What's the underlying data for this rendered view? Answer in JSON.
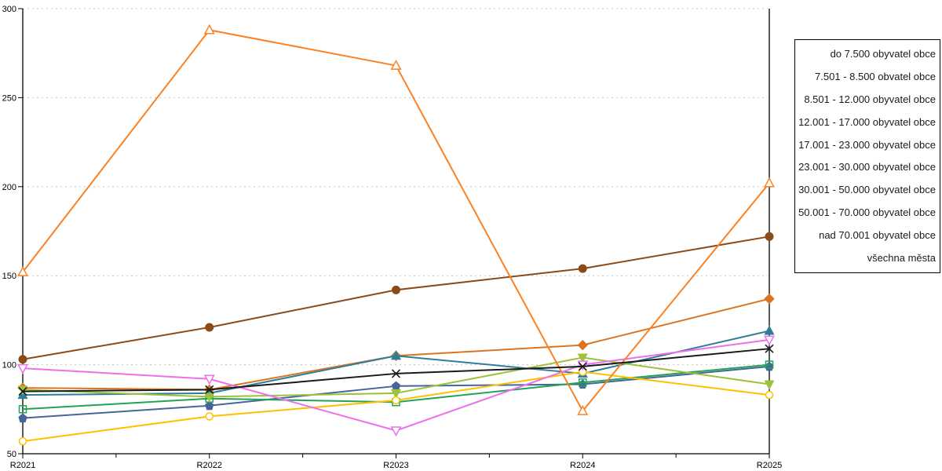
{
  "page": {
    "background": "#ffffff"
  },
  "chart_data": {
    "type": "line",
    "title": "",
    "xlabel": "",
    "ylabel": "",
    "categories": [
      "R2021",
      "R2022",
      "R2023",
      "R2024",
      "R2025"
    ],
    "ylim": [
      50,
      300
    ],
    "y_ticks": [
      50,
      100,
      150,
      200,
      250,
      300
    ],
    "grid": "horizontal-dotted",
    "grid_color": "#c4c4c4",
    "axis_color": "#000000",
    "legend_position": "right-outside",
    "series": [
      {
        "name": "do 7.500 obyvatel obce",
        "color": "#ffc000",
        "marker": "open-circle",
        "values": [
          57,
          71,
          80,
          96,
          83
        ]
      },
      {
        "name": "7.501 - 8.500 obvatel obce",
        "color": "#fb8122",
        "marker": "open-triangle-up",
        "values": [
          152,
          288,
          268,
          74,
          202
        ]
      },
      {
        "name": "8.501 - 12.000 obyvatel obce",
        "color": "#ee6feb",
        "marker": "open-triangle-down",
        "values": [
          98,
          92,
          63,
          100,
          114
        ]
      },
      {
        "name": "12.001 - 17.000 obyvatel obce",
        "color": "#9cc23c",
        "marker": "filled-triangle-down",
        "values": [
          86,
          82,
          84,
          104,
          89
        ]
      },
      {
        "name": "17.001 - 23.000 obyvatel obce",
        "color": "#23a455",
        "marker": "open-square",
        "values": [
          75,
          81,
          79,
          90,
          100
        ]
      },
      {
        "name": "23.001 - 30.000 obyvatel obce",
        "color": "#47659b",
        "marker": "filled-pentagon",
        "values": [
          70,
          77,
          88,
          89,
          99
        ]
      },
      {
        "name": "30.001 - 50.000 obyvatel obce",
        "color": "#2e7e99",
        "marker": "filled-triangle-up",
        "values": [
          83,
          84,
          105,
          95,
          119
        ]
      },
      {
        "name": "50.001 - 70.000 obyvatel obce",
        "color": "#db7420",
        "marker": "filled-diamond",
        "values": [
          87,
          86,
          105,
          111,
          137
        ]
      },
      {
        "name": "nad 70.001 obyvatel obce",
        "color": "#8b4a17",
        "marker": "filled-circle",
        "values": [
          103,
          121,
          142,
          154,
          172
        ]
      },
      {
        "name": "všechna města",
        "color": "#1a1a1a",
        "marker": "x-cross",
        "values": [
          85,
          86,
          95,
          99,
          109
        ]
      }
    ],
    "draw_order": [
      5,
      4,
      7,
      6,
      3,
      0,
      8,
      2,
      1,
      9
    ]
  },
  "legend": {
    "border_color": "#000000"
  }
}
